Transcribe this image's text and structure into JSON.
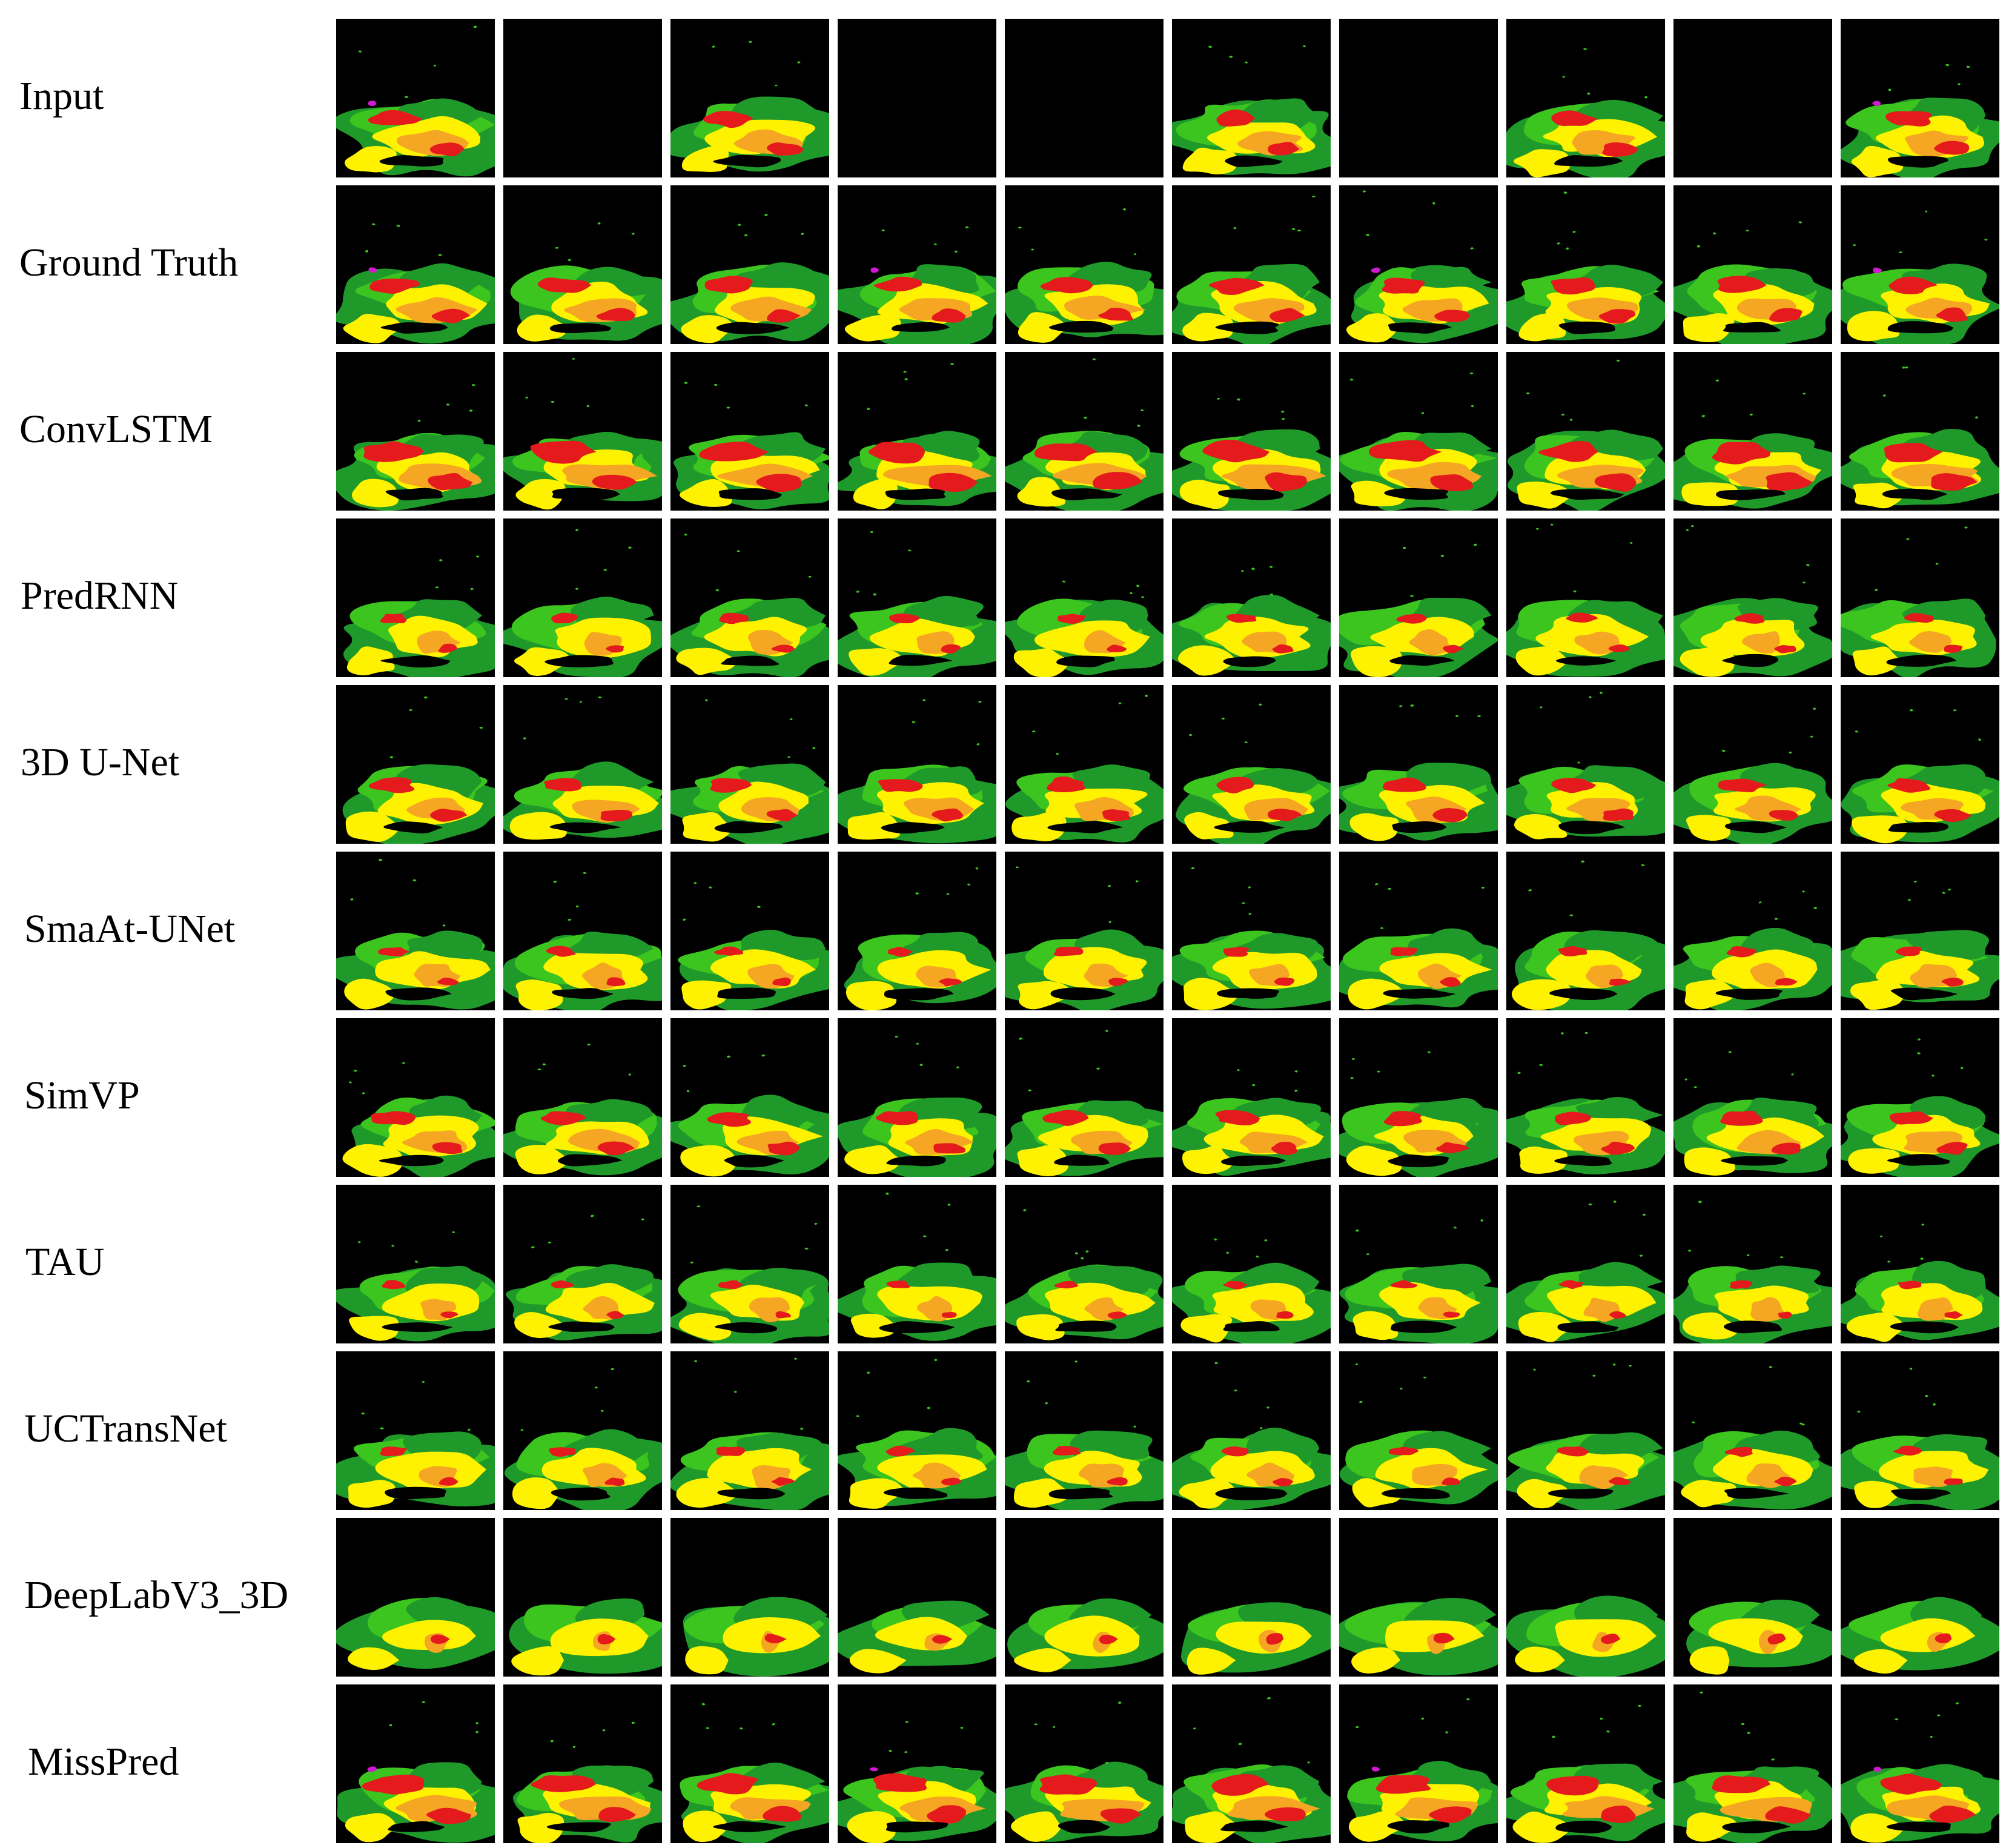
{
  "rows": [
    {
      "label": "Input",
      "missing": [
        1,
        3,
        4,
        6,
        8
      ]
    },
    {
      "label": "Ground Truth",
      "missing": []
    },
    {
      "label": "ConvLSTM",
      "missing": []
    },
    {
      "label": "PredRNN",
      "missing": []
    },
    {
      "label": "3D U-Net",
      "missing": []
    },
    {
      "label": "SmaAt-UNet",
      "missing": []
    },
    {
      "label": "SimVP",
      "missing": []
    },
    {
      "label": "TAU",
      "missing": []
    },
    {
      "label": "UCTransNet",
      "missing": []
    },
    {
      "label": "DeepLabV3_3D",
      "missing": []
    },
    {
      "label": "MissPred",
      "missing": []
    }
  ],
  "frames_per_row": 10,
  "palette": {
    "background": "#000000",
    "dark_green": "#1f9a2a",
    "light_green": "#3cc51f",
    "yellow": "#fff200",
    "orange": "#f5a623",
    "red": "#e41a1c",
    "dark_red": "#c0001a",
    "magenta": "#d01ad0"
  }
}
